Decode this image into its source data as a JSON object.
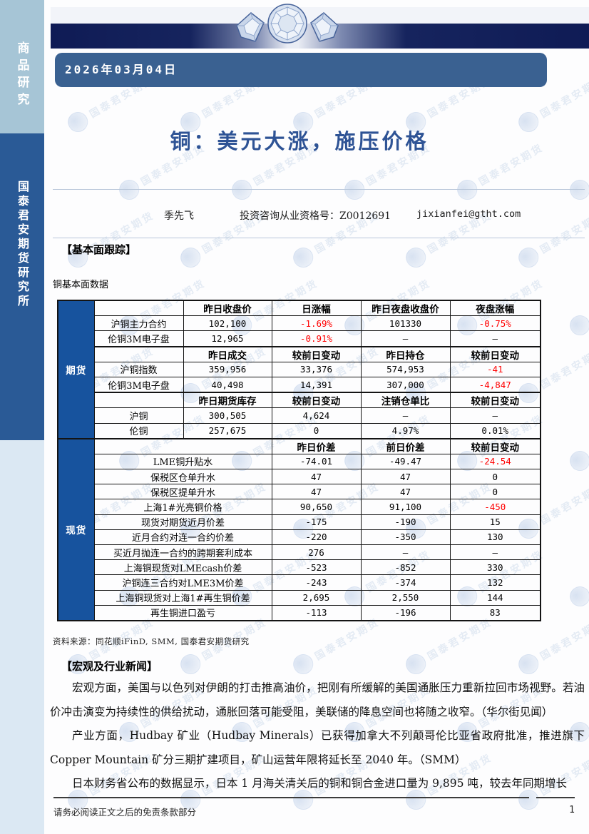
{
  "page": {
    "date": "2026年03月04日",
    "title": "铜：美元大涨，施压价格",
    "footer_note": "请务必阅读正文之后的免责条款部分",
    "page_number": "1"
  },
  "sidebar": {
    "category": "商品研究",
    "institute": "国泰君安期货研究所"
  },
  "author": {
    "name": "季先飞",
    "qualification": "投资咨询从业资格号：Z0012691",
    "email": "jixianfei@gtht.com"
  },
  "sections": {
    "fundamentals_header": "【基本面跟踪】",
    "table_caption": "铜基本面数据",
    "source_note": "资料来源：同花顺iFinD, SMM, 国泰君安期货研究",
    "news_header": "【宏观及行业新闻】"
  },
  "table": {
    "group_futures": "期货",
    "group_spot": "现货",
    "rows": [
      {
        "type": "header",
        "section": "futures",
        "cells": [
          "",
          "昨日收盘价",
          "日涨幅",
          "昨日夜盘收盘价",
          "夜盘涨幅"
        ]
      },
      {
        "type": "data",
        "section": "futures",
        "label": "沪铜主力合约",
        "values": [
          {
            "t": "102,100"
          },
          {
            "t": "-1.69%",
            "red": true
          },
          {
            "t": "101330"
          },
          {
            "t": "-0.75%",
            "red": true
          }
        ]
      },
      {
        "type": "data",
        "section": "futures",
        "label": "伦铜3M电子盘",
        "values": [
          {
            "t": "12,965"
          },
          {
            "t": "-0.91%",
            "red": true
          },
          {
            "t": "–"
          },
          {
            "t": "–"
          }
        ]
      },
      {
        "type": "header",
        "section": "futures",
        "cells": [
          "",
          "昨日成交",
          "较前日变动",
          "昨日持仓",
          "较前日变动"
        ]
      },
      {
        "type": "data",
        "section": "futures",
        "label": "沪铜指数",
        "values": [
          {
            "t": "359,956"
          },
          {
            "t": "33,376"
          },
          {
            "t": "574,953"
          },
          {
            "t": "-41",
            "red": true
          }
        ]
      },
      {
        "type": "data",
        "section": "futures",
        "label": "伦铜3M电子盘",
        "values": [
          {
            "t": "40,498"
          },
          {
            "t": "14,391"
          },
          {
            "t": "307,000"
          },
          {
            "t": "-4,847",
            "red": true
          }
        ]
      },
      {
        "type": "header",
        "section": "futures",
        "cells": [
          "",
          "昨日期货库存",
          "较前日变动",
          "注销仓单比",
          "较前日变动"
        ]
      },
      {
        "type": "data",
        "section": "futures",
        "label": "沪铜",
        "values": [
          {
            "t": "300,505"
          },
          {
            "t": "4,624"
          },
          {
            "t": "–"
          },
          {
            "t": "–"
          }
        ]
      },
      {
        "type": "data",
        "section": "futures",
        "label": "伦铜",
        "values": [
          {
            "t": "257,675"
          },
          {
            "t": "0"
          },
          {
            "t": "4.97%"
          },
          {
            "t": "0.01%"
          }
        ]
      },
      {
        "type": "header",
        "section": "spot",
        "cells": [
          "",
          "昨日价差",
          "前日价差",
          "较前日变动"
        ]
      },
      {
        "type": "data",
        "section": "spot",
        "label": "LME铜升贴水",
        "values": [
          {
            "t": "-74.01"
          },
          {
            "t": "-49.47"
          },
          {
            "t": "-24.54",
            "red": true
          }
        ]
      },
      {
        "type": "data",
        "section": "spot",
        "label": "保税区仓单升水",
        "values": [
          {
            "t": "47"
          },
          {
            "t": "47"
          },
          {
            "t": "0"
          }
        ]
      },
      {
        "type": "data",
        "section": "spot",
        "label": "保税区提单升水",
        "values": [
          {
            "t": "47"
          },
          {
            "t": "47"
          },
          {
            "t": "0"
          }
        ]
      },
      {
        "type": "data",
        "section": "spot",
        "label": "上海1#光亮铜价格",
        "values": [
          {
            "t": "90,650"
          },
          {
            "t": "91,100"
          },
          {
            "t": "-450",
            "red": true
          }
        ]
      },
      {
        "type": "data",
        "section": "spot",
        "label": "现货对期货近月价差",
        "values": [
          {
            "t": "-175"
          },
          {
            "t": "-190"
          },
          {
            "t": "15"
          }
        ]
      },
      {
        "type": "data",
        "section": "spot",
        "label": "近月合约对连一合约价差",
        "values": [
          {
            "t": "-220"
          },
          {
            "t": "-350"
          },
          {
            "t": "130"
          }
        ]
      },
      {
        "type": "data",
        "section": "spot",
        "label": "买近月抛连一合约的跨期套利成本",
        "values": [
          {
            "t": "276"
          },
          {
            "t": "–"
          },
          {
            "t": "–"
          }
        ]
      },
      {
        "type": "data",
        "section": "spot",
        "label": "上海铜现货对LMEcash价差",
        "values": [
          {
            "t": "-523"
          },
          {
            "t": "-852"
          },
          {
            "t": "330"
          }
        ]
      },
      {
        "type": "data",
        "section": "spot",
        "label": "沪铜连三合约对LME3M价差",
        "values": [
          {
            "t": "-243"
          },
          {
            "t": "-374"
          },
          {
            "t": "132"
          }
        ]
      },
      {
        "type": "data",
        "section": "spot",
        "label": "上海铜现货对上海1#再生铜价差",
        "values": [
          {
            "t": "2,695"
          },
          {
            "t": "2,550"
          },
          {
            "t": "144"
          }
        ]
      },
      {
        "type": "data",
        "section": "spot",
        "label": "再生铜进口盈亏",
        "values": [
          {
            "t": "-113"
          },
          {
            "t": "-196"
          },
          {
            "t": "83"
          }
        ]
      }
    ]
  },
  "news": [
    "宏观方面，美国与以色列对伊朗的打击推高油价，把刚有所缓解的美国通胀压力重新拉回市场视野。若油价冲击演变为持续性的供给扰动，通胀回落可能受阻，美联储的降息空间也将随之收窄。（华尔街见闻）",
    "产业方面，Hudbay 矿业（Hudbay Minerals）已获得加拿大不列颠哥伦比亚省政府批准，推进旗下 Copper Mountain 矿分三期扩建项目，矿山运营年限将延长至 2040 年。（SMM）",
    "日本财务省公布的数据显示，日本 1 月海关清关后的铜和铜合金进口量为 9,895 吨，较去年同期增长"
  ],
  "watermark": {
    "text": "国泰君安期货",
    "rows": 11,
    "cols": 5
  },
  "colors": {
    "accent_blue": "#2e5395",
    "negative_red": "#ff0000",
    "table_group_bg": "#17539e",
    "date_bar_bg": "#3a6191",
    "sidebar_top_bg": "#a6c5d6",
    "sidebar_mid_bg": "#2a5a96"
  }
}
